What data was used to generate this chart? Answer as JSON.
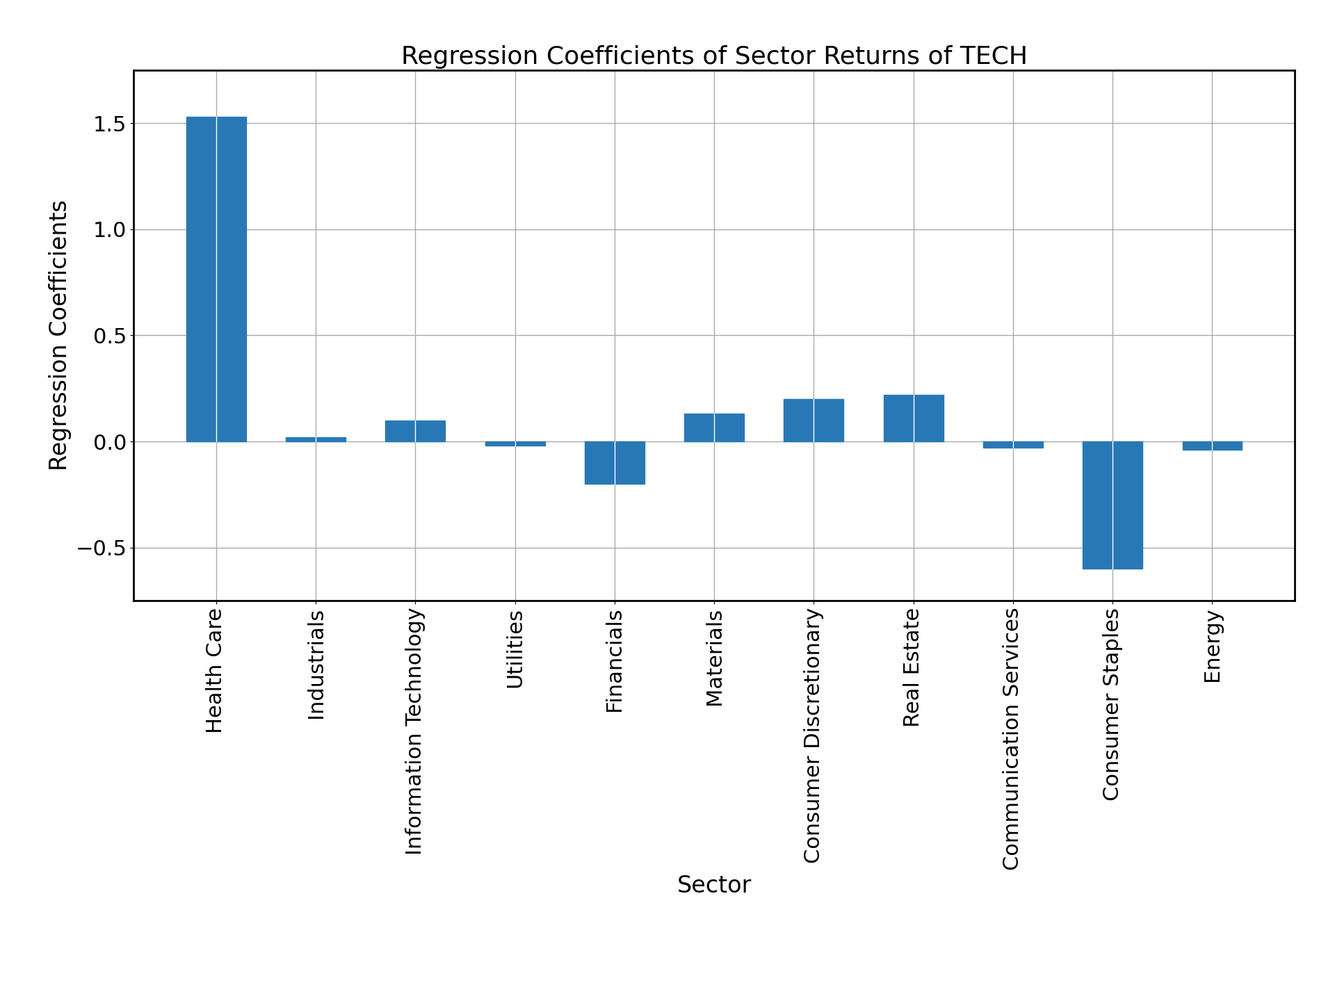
{
  "title": "Regression Coefficients of Sector Returns of TECH",
  "xlabel": "Sector",
  "ylabel": "Regression Coefficients",
  "categories": [
    "Health Care",
    "Industrials",
    "Information Technology",
    "Utilities",
    "Financials",
    "Materials",
    "Consumer Discretionary",
    "Real Estate",
    "Communication Services",
    "Consumer Staples",
    "Energy"
  ],
  "values": [
    1.53,
    0.02,
    0.1,
    -0.02,
    -0.2,
    0.13,
    0.2,
    0.22,
    -0.03,
    -0.6,
    -0.04
  ],
  "bar_color": "#2878b5",
  "background_color": "#ffffff",
  "grid_color": "#aaaaaa",
  "title_fontsize": 26,
  "label_fontsize": 24,
  "tick_fontsize": 22,
  "ylim": [
    -0.75,
    1.75
  ]
}
